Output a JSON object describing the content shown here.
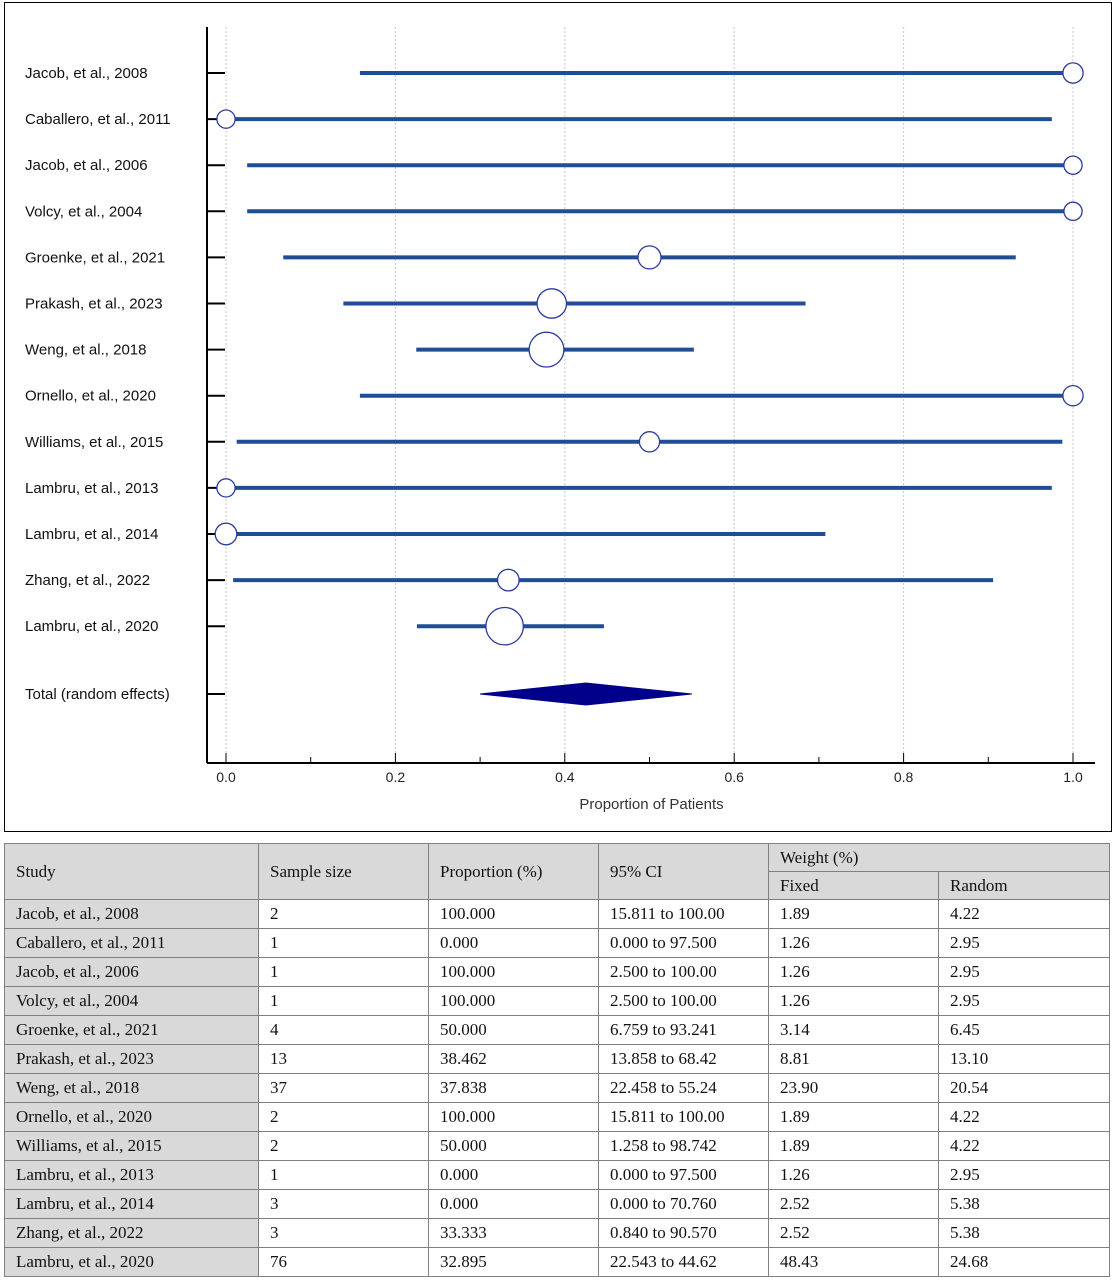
{
  "chart_data": {
    "type": "forest",
    "xlabel": "Proportion of Patients",
    "xlim": [
      -0.025,
      1.025
    ],
    "xticks": [
      "0.0",
      "0.2",
      "0.4",
      "0.6",
      "0.8",
      "1.0"
    ],
    "grid": "vertical dotted",
    "studies": [
      {
        "label": "Jacob, et al., 2008",
        "estimate": 1.0,
        "ci_low": 0.15811,
        "ci_high": 1.0,
        "weight": 4.22
      },
      {
        "label": "Caballero, et al., 2011",
        "estimate": 0.0,
        "ci_low": 0.0,
        "ci_high": 0.975,
        "weight": 2.95
      },
      {
        "label": "Jacob, et al., 2006",
        "estimate": 1.0,
        "ci_low": 0.025,
        "ci_high": 1.0,
        "weight": 2.95
      },
      {
        "label": "Volcy, et al., 2004",
        "estimate": 1.0,
        "ci_low": 0.025,
        "ci_high": 1.0,
        "weight": 2.95
      },
      {
        "label": "Groenke, et al., 2021",
        "estimate": 0.5,
        "ci_low": 0.06759,
        "ci_high": 0.93241,
        "weight": 6.45
      },
      {
        "label": "Prakash, et al., 2023",
        "estimate": 0.38462,
        "ci_low": 0.13858,
        "ci_high": 0.6842,
        "weight": 13.1
      },
      {
        "label": "Weng, et al., 2018",
        "estimate": 0.37838,
        "ci_low": 0.22458,
        "ci_high": 0.5524,
        "weight": 20.54
      },
      {
        "label": "Ornello, et al., 2020",
        "estimate": 1.0,
        "ci_low": 0.15811,
        "ci_high": 1.0,
        "weight": 4.22
      },
      {
        "label": "Williams, et al., 2015",
        "estimate": 0.5,
        "ci_low": 0.01258,
        "ci_high": 0.98742,
        "weight": 4.22
      },
      {
        "label": "Lambru, et al., 2013",
        "estimate": 0.0,
        "ci_low": 0.0,
        "ci_high": 0.975,
        "weight": 2.95
      },
      {
        "label": "Lambru, et al., 2014",
        "estimate": 0.0,
        "ci_low": 0.0,
        "ci_high": 0.7076,
        "weight": 5.38
      },
      {
        "label": "Zhang, et al., 2022",
        "estimate": 0.33333,
        "ci_low": 0.0084,
        "ci_high": 0.9057,
        "weight": 5.38
      },
      {
        "label": "Lambru, et al., 2020",
        "estimate": 0.32895,
        "ci_low": 0.22543,
        "ci_high": 0.4462,
        "weight": 24.68
      }
    ],
    "total": {
      "label": "Total (random effects)",
      "estimate": 0.425,
      "ci_low": 0.3,
      "ci_high": 0.55
    },
    "colors": {
      "ci_line": "#1f4e96",
      "marker_stroke": "#2b3a9e",
      "marker_fill": "#ffffff",
      "diamond": "#00008b",
      "grid": "#c8c8c8",
      "axis": "#000000"
    }
  },
  "table": {
    "headers": {
      "study": "Study",
      "sample_size": "Sample size",
      "proportion": "Proportion (%)",
      "ci": "95% CI",
      "weight": "Weight (%)",
      "fixed": "Fixed",
      "random": "Random"
    },
    "rows": [
      [
        "Jacob, et al., 2008",
        "2",
        "100.000",
        "15.811 to 100.00",
        "1.89",
        "4.22"
      ],
      [
        "Caballero, et al., 2011",
        "1",
        "0.000",
        "0.000 to 97.500",
        "1.26",
        "2.95"
      ],
      [
        "Jacob, et al., 2006",
        "1",
        "100.000",
        "2.500 to 100.00",
        "1.26",
        "2.95"
      ],
      [
        "Volcy, et al., 2004",
        "1",
        "100.000",
        "2.500 to 100.00",
        "1.26",
        "2.95"
      ],
      [
        "Groenke, et al., 2021",
        "4",
        "50.000",
        "6.759 to 93.241",
        "3.14",
        "6.45"
      ],
      [
        "Prakash, et al., 2023",
        "13",
        "38.462",
        "13.858 to 68.42",
        "8.81",
        "13.10"
      ],
      [
        "Weng, et al., 2018",
        "37",
        "37.838",
        "22.458 to 55.24",
        "23.90",
        "20.54"
      ],
      [
        "Ornello, et al., 2020",
        "2",
        "100.000",
        "15.811 to 100.00",
        "1.89",
        "4.22"
      ],
      [
        "Williams, et al., 2015",
        "2",
        "50.000",
        "1.258 to 98.742",
        "1.89",
        "4.22"
      ],
      [
        "Lambru, et al., 2013",
        "1",
        "0.000",
        "0.000 to 97.500",
        "1.26",
        "2.95"
      ],
      [
        "Lambru, et al., 2014",
        "3",
        "0.000",
        "0.000 to 70.760",
        "2.52",
        "5.38"
      ],
      [
        "Zhang, et al., 2022",
        "3",
        "33.333",
        "0.840 to 90.570",
        "2.52",
        "5.38"
      ],
      [
        "Lambru, et al., 2020",
        "76",
        "32.895",
        "22.543 to 44.62",
        "48.43",
        "24.68"
      ]
    ]
  }
}
